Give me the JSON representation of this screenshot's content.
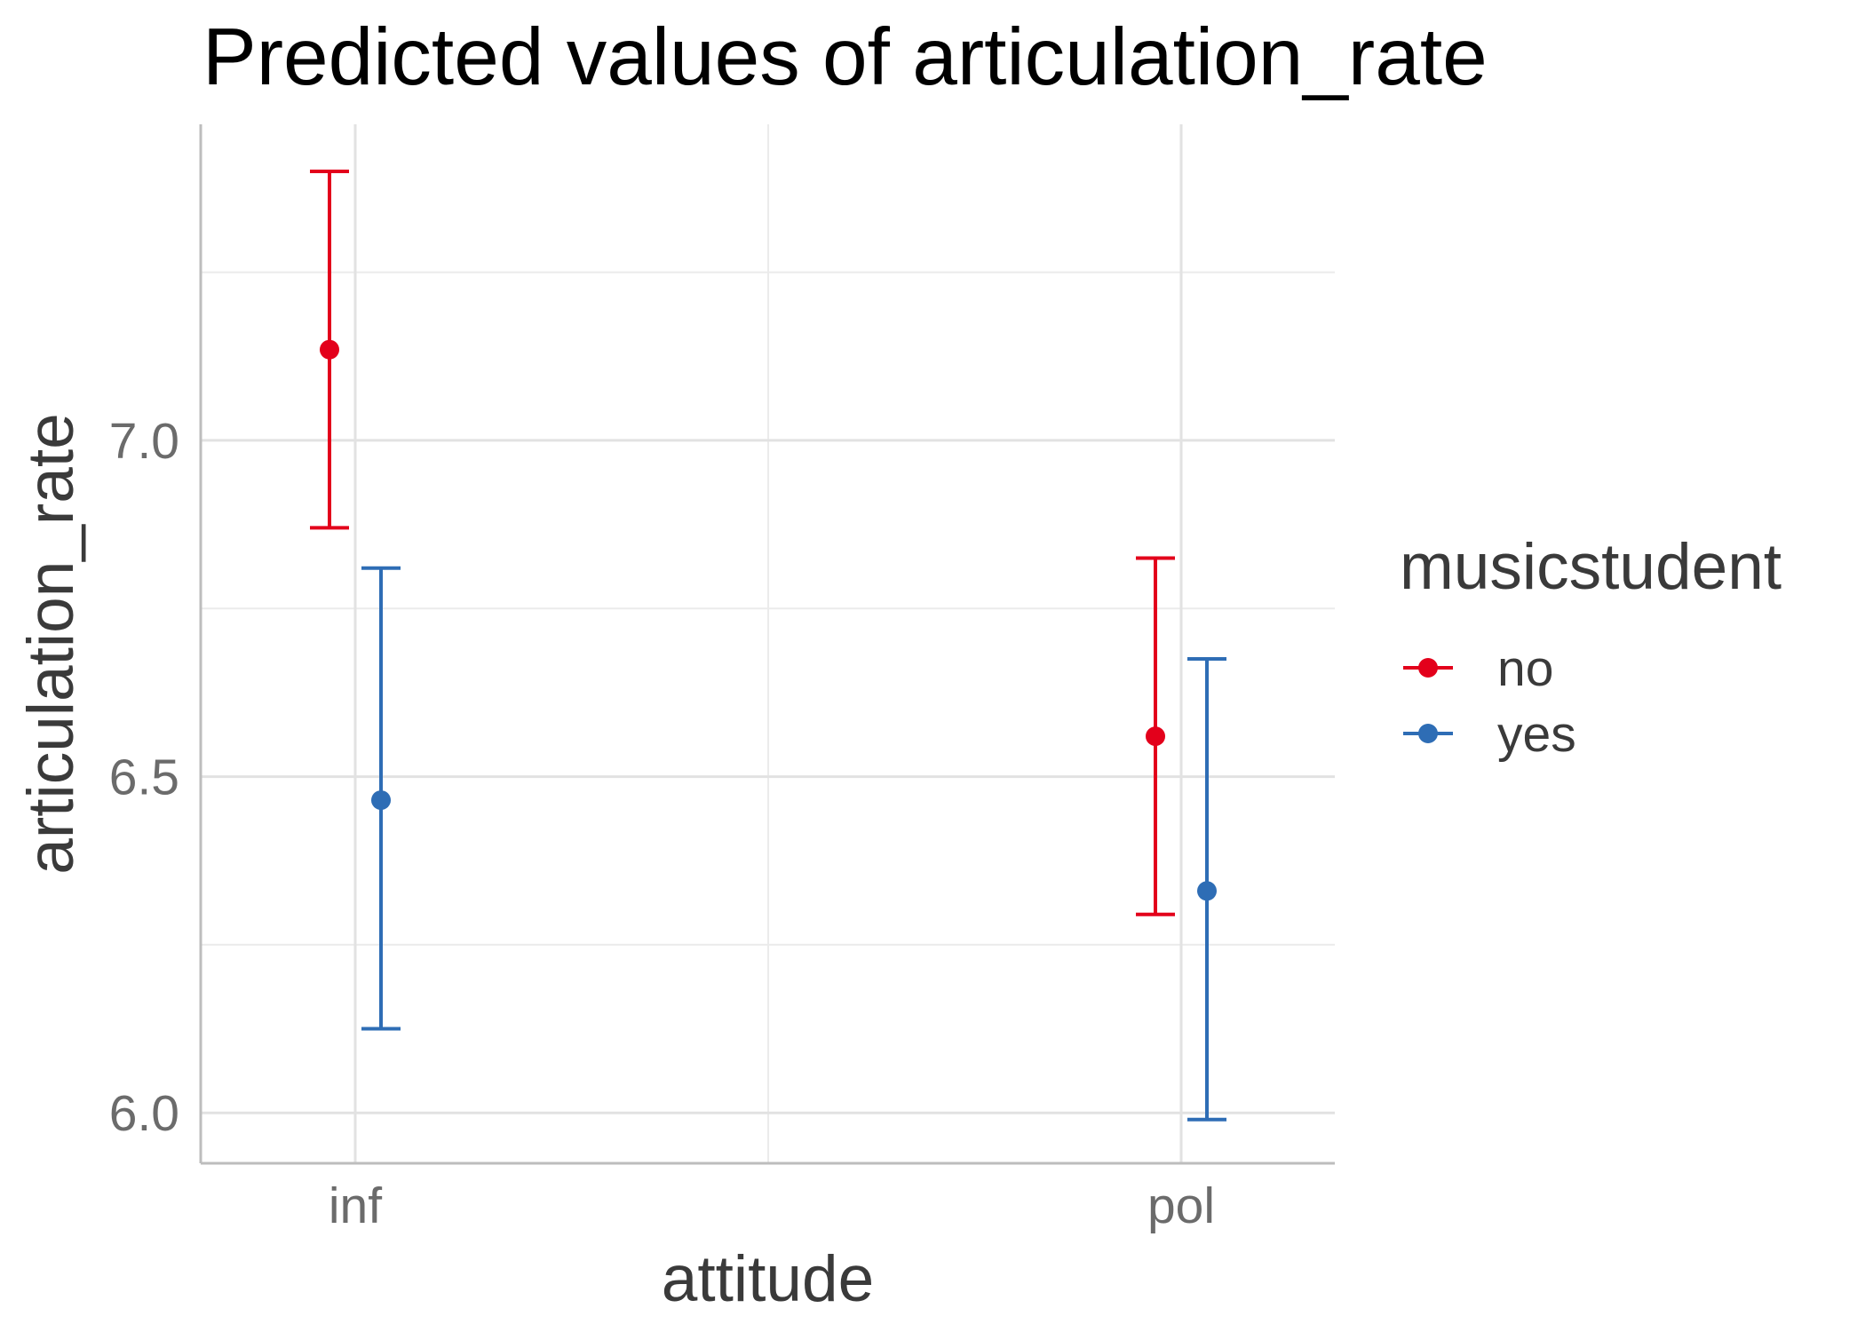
{
  "chart_data": {
    "type": "scatter",
    "subtype": "point-errorbar",
    "title": "Predicted values of articulation_rate",
    "xlabel": "attitude",
    "ylabel": "articulation_rate",
    "categories": [
      "inf",
      "pol"
    ],
    "ylim": [
      5.925,
      7.47
    ],
    "y_major_ticks": [
      6.0,
      6.5,
      7.0
    ],
    "y_tick_labels": [
      "6.0",
      "6.5",
      "7.0"
    ],
    "y_minor_ticks": [
      6.25,
      6.75,
      7.25
    ],
    "grid": true,
    "legend": {
      "title": "musicstudent",
      "position": "right"
    },
    "series": [
      {
        "name": "no",
        "color": "#e3001b",
        "values": [
          7.135,
          6.56
        ],
        "lower": [
          6.87,
          6.295
        ],
        "upper": [
          7.4,
          6.825
        ]
      },
      {
        "name": "yes",
        "color": "#2e6db5",
        "values": [
          6.465,
          6.33
        ],
        "lower": [
          6.125,
          5.99
        ],
        "upper": [
          6.81,
          6.675
        ]
      }
    ]
  }
}
